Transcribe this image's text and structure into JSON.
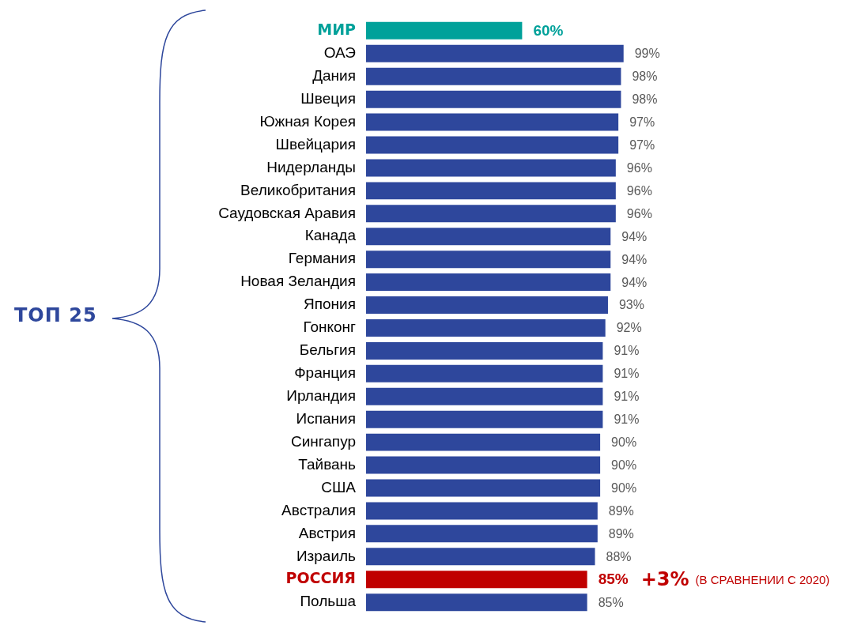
{
  "chart_data": {
    "type": "bar",
    "orientation": "horizontal",
    "categories": [
      "МИР",
      "ОАЭ",
      "Дания",
      "Швеция",
      "Южная Корея",
      "Швейцария",
      "Нидерланды",
      "Великобритания",
      "Саудовская Аравия",
      "Канада",
      "Германия",
      "Новая Зеландия",
      "Япония",
      "Гонконг",
      "Бельгия",
      "Франция",
      "Ирландия",
      "Испания",
      "Сингапур",
      "Тайвань",
      "США",
      "Австралия",
      "Австрия",
      "Израиль",
      "РОССИЯ",
      "Польша"
    ],
    "values": [
      60,
      99,
      98,
      98,
      97,
      97,
      96,
      96,
      96,
      94,
      94,
      94,
      93,
      92,
      91,
      91,
      91,
      91,
      90,
      90,
      90,
      89,
      89,
      88,
      85,
      85
    ],
    "value_labels": [
      "60%",
      "99%",
      "98%",
      "98%",
      "97%",
      "97%",
      "96%",
      "96%",
      "96%",
      "94%",
      "94%",
      "94%",
      "93%",
      "92%",
      "91%",
      "91%",
      "91%",
      "91%",
      "90%",
      "90%",
      "90%",
      "89%",
      "89%",
      "88%",
      "85%",
      "85%"
    ],
    "colors": [
      "#00a19a",
      "#2e479c",
      "#2e479c",
      "#2e479c",
      "#2e479c",
      "#2e479c",
      "#2e479c",
      "#2e479c",
      "#2e479c",
      "#2e479c",
      "#2e479c",
      "#2e479c",
      "#2e479c",
      "#2e479c",
      "#2e479c",
      "#2e479c",
      "#2e479c",
      "#2e479c",
      "#2e479c",
      "#2e479c",
      "#2e479c",
      "#2e479c",
      "#2e479c",
      "#2e479c",
      "#c00000",
      "#2e479c"
    ],
    "tick_labels": "y",
    "grid": false,
    "legend": false,
    "annotations": [
      "ТОП 25",
      "+3%",
      "(В СРАВНЕНИИ С 2020)"
    ]
  }
}
